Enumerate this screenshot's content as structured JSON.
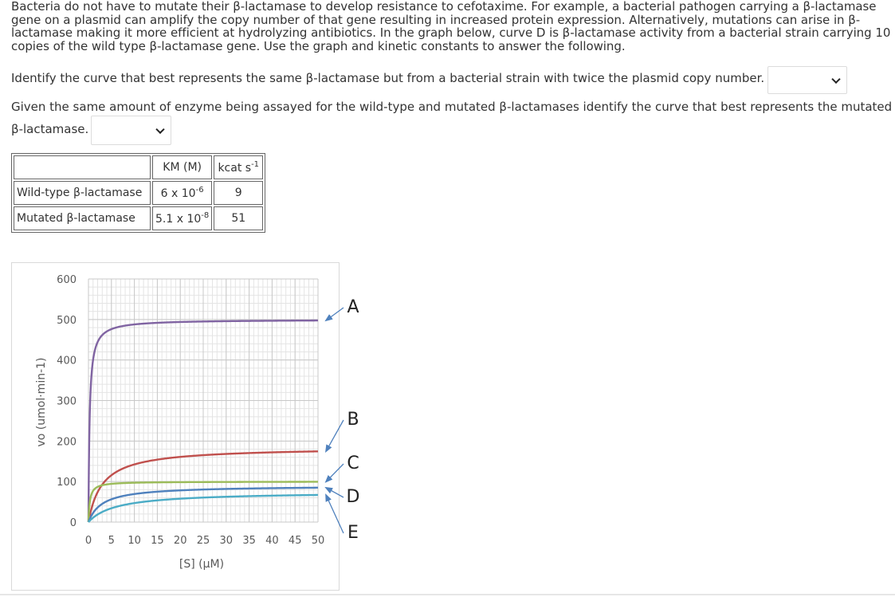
{
  "question": {
    "intro": "Bacteria do not have to mutate their β-lactamase to develop resistance to cefotaxime.  For example, a bacterial pathogen carrying a β-lactamase gene on a plasmid can amplify the copy number of that gene resulting in increased protein expression. Alternatively, mutations can arise in β-lactamase making it more efficient at hydrolyzing antibiotics.  In the graph below, curve D is β-lactamase activity from a bacterial strain carrying 10 copies of the wild type β-lactamase gene. Use the graph and kinetic constants to answer the following.",
    "q1": "Identify the curve that best represents the same β-lactamase but from a bacterial strain with twice the plasmid copy number.",
    "q1_selected": "",
    "q2_line1": "Given the same amount of enzyme being assayed for the wild-type and mutated β-lactamases identify the curve that best represents the mutated",
    "q2_line2": "β-lactamase.",
    "q2_selected": ""
  },
  "table": {
    "header_km": "KM (M)",
    "header_kcat_main": "kcat s",
    "header_kcat_sup": "-1",
    "rows": [
      {
        "name": "Wild-type β-lactamase",
        "km_base": "6 x 10",
        "km_exp": "-6",
        "kcat": "9"
      },
      {
        "name": "Mutated β-lactamase",
        "km_base": "5.1 x 10",
        "km_exp": "-8",
        "kcat": "51"
      }
    ]
  },
  "colors": {
    "A": "#8064a2",
    "B": "#c0504d",
    "C": "#9bbb59",
    "D": "#4f81bd",
    "E": "#4bacc6",
    "arrow": "#4f81bd"
  },
  "chart_data": {
    "type": "line",
    "xlabel": "[S] (μM)",
    "ylabel": "vo (umol·min-1)",
    "xlim": [
      0,
      50
    ],
    "ylim": [
      0,
      600
    ],
    "x_ticks": [
      "0",
      "5",
      "10",
      "15",
      "20",
      "25",
      "30",
      "35",
      "40",
      "45",
      "50"
    ],
    "y_ticks": [
      "0",
      "100",
      "200",
      "300",
      "400",
      "500",
      "600"
    ],
    "grid": true,
    "curve_labels": [
      "A",
      "B",
      "C",
      "D",
      "E"
    ],
    "series": [
      {
        "name": "A",
        "vmax": 500,
        "km": 0.25
      },
      {
        "name": "B",
        "vmax": 185,
        "km": 3
      },
      {
        "name": "C",
        "vmax": 100,
        "km": 0.3
      },
      {
        "name": "D",
        "vmax": 90,
        "km": 3
      },
      {
        "name": "E",
        "vmax": 75,
        "km": 6
      }
    ]
  }
}
